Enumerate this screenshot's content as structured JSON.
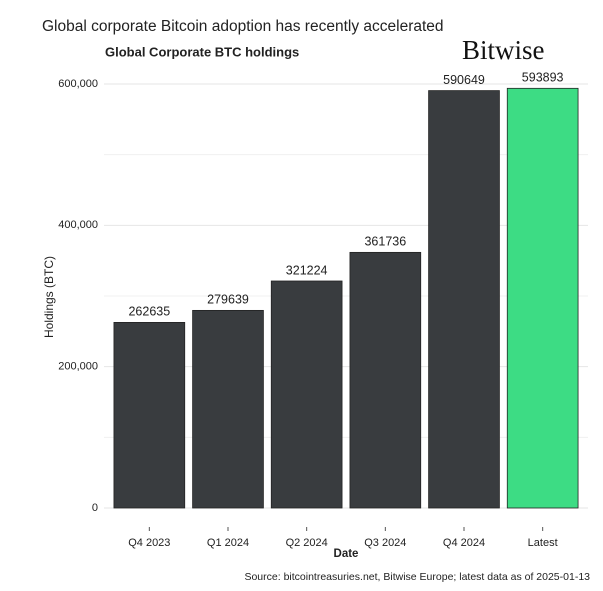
{
  "chart_data": {
    "type": "bar",
    "headline": "Global corporate Bitcoin adoption has recently accelerated",
    "title": "Global Corporate BTC holdings",
    "brand": "Bitwise",
    "x_label": "Date",
    "y_label": "Holdings (BTC)",
    "source": "Source: bitcointreasuries.net, Bitwise Europe; latest data as of 2025-01-13",
    "categories": [
      "Q4 2023",
      "Q1 2024",
      "Q2 2024",
      "Q3 2024",
      "Q4 2024",
      "Latest"
    ],
    "values": [
      262635,
      279639,
      321224,
      361736,
      590649,
      593893
    ],
    "colors": [
      "#393c3f",
      "#393c3f",
      "#393c3f",
      "#393c3f",
      "#393c3f",
      "#3ddc84"
    ],
    "ylim": [
      0,
      600000
    ],
    "yticks": [
      0,
      {
        "value": 200000,
        "label": "200,000"
      },
      {
        "value": 400000,
        "label": "400,000"
      },
      {
        "value": 600000,
        "label": "600,000"
      }
    ],
    "y_minor_ticks": [
      100000,
      300000,
      500000
    ],
    "grid": true
  }
}
